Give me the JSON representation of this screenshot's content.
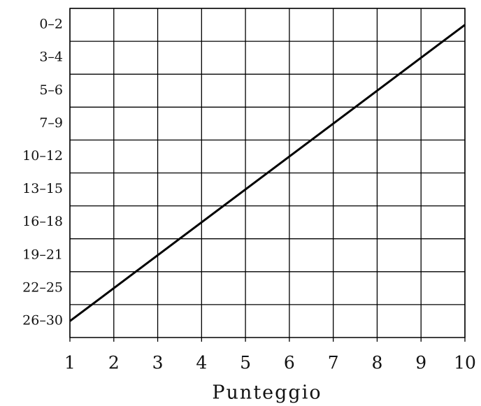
{
  "chart_data": {
    "type": "line",
    "x_label": "Punteggio",
    "x": [
      1,
      10
    ],
    "series": [
      {
        "color": "#000000",
        "values": [
          0,
          9
        ]
      }
    ],
    "xlim": [
      1,
      10
    ],
    "xticks": [
      1,
      2,
      3,
      4,
      5,
      6,
      7,
      8,
      9,
      10
    ],
    "ylim": [
      -0.5,
      9.5
    ],
    "yticks": [
      {
        "value": 0,
        "label": "26–30"
      },
      {
        "value": 1,
        "label": "22–25"
      },
      {
        "value": 2,
        "label": "19–21"
      },
      {
        "value": 3,
        "label": "16–18"
      },
      {
        "value": 4,
        "label": "13–15"
      },
      {
        "value": 5,
        "label": "10–12"
      },
      {
        "value": 6,
        "label": "7–9"
      },
      {
        "value": 7,
        "label": "5–6"
      },
      {
        "value": 8,
        "label": "3–4"
      },
      {
        "value": 9,
        "label": "0–2"
      }
    ],
    "grid": true
  }
}
